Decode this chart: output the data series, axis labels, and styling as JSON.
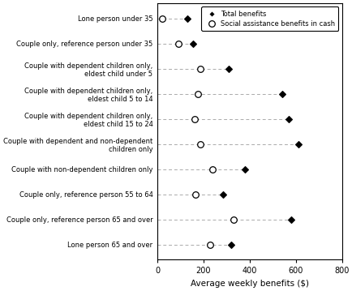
{
  "categories": [
    "Lone person under 35",
    "Couple only, reference person under 35",
    "Couple with dependent children only,\neldest child under 5",
    "Couple with dependent children only,\neldest child 5 to 14",
    "Couple with dependent children only,\neldest child 15 to 24",
    "Couple with dependent and non-dependent\nchildren only",
    "Couple with non-dependent children only",
    "Couple only, reference person 55 to 64",
    "Couple only, reference person 65 and over",
    "Lone person 65 and over"
  ],
  "total_benefits": [
    130,
    155,
    310,
    540,
    570,
    610,
    380,
    285,
    580,
    320
  ],
  "social_assistance": [
    20,
    90,
    185,
    175,
    160,
    185,
    240,
    165,
    330,
    230
  ],
  "xlabel": "Average weekly benefits ($)",
  "xlim": [
    0,
    800
  ],
  "xticks": [
    0,
    200,
    400,
    600,
    800
  ],
  "legend_total": "Total benefits",
  "legend_social": "Social assistance benefits in cash",
  "line_color": "#aaaaaa",
  "marker_filled_color": "#000000",
  "marker_open_color": "#ffffff"
}
